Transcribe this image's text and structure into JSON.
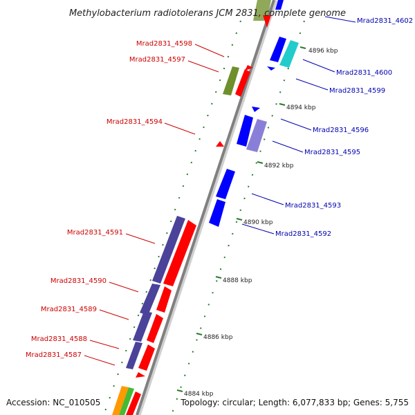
{
  "title": "Methylobacterium radiotolerans JCM 2831, complete genome",
  "footer": {
    "accession": "Accession: NC_010505",
    "topology": "Topology: circular; Length: 6,077,833 bp; Genes: 5,755"
  },
  "colors": {
    "forward": "#ff0000",
    "reverse": "#0000ff",
    "purple": "#5a55a6",
    "lavender": "#8a7fd8",
    "olive": "#6f8f2a",
    "cyan": "#22cccc",
    "orange": "#ff9900",
    "green": "#44bb33",
    "label_forward": "#cc0000",
    "label_reverse": "#0000b0",
    "tick": "#2a7a2a",
    "backbone": "#888888"
  },
  "ticks": [
    "4896 kbp",
    "4894 kbp",
    "4892 kbp",
    "4890 kbp",
    "4888 kbp",
    "4886 kbp",
    "4884 kbp"
  ],
  "labels_forward": [
    "Mrad2831_4598",
    "Mrad2831_4597",
    "Mrad2831_4594",
    "Mrad2831_4591",
    "Mrad2831_4590",
    "Mrad2831_4589",
    "Mrad2831_4588",
    "Mrad2831_4587"
  ],
  "labels_reverse": [
    "Mrad2831_4602",
    "Mrad2831_4600",
    "Mrad2831_4599",
    "Mrad2831_4596",
    "Mrad2831_4595",
    "Mrad2831_4593",
    "Mrad2831_4592"
  ]
}
